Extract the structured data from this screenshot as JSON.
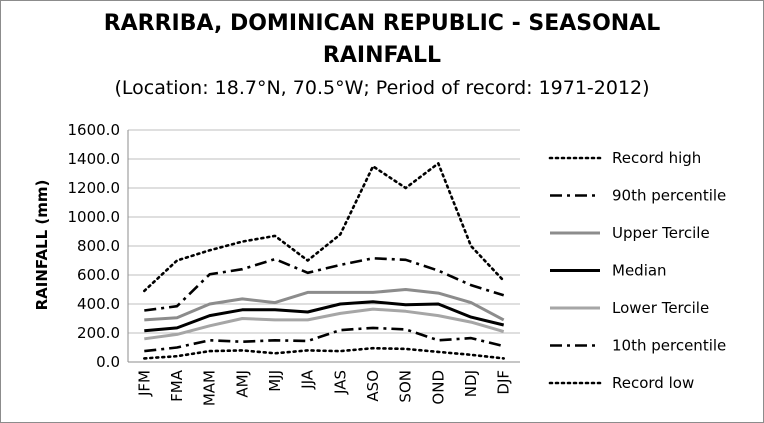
{
  "chart_data": {
    "type": "line",
    "title_line1": "RARRIBA, DOMINICAN REPUBLIC - SEASONAL",
    "title_line2": "RAINFALL",
    "subtitle": "(Location: 18.7°N, 70.5°W; Period of record: 1971-2012)",
    "ylabel": "RAINFALL (mm)",
    "xlabel": "",
    "ylim": [
      0,
      1600
    ],
    "ytick_values": [
      0,
      200,
      400,
      600,
      800,
      1000,
      1200,
      1400,
      1600
    ],
    "ytick_labels": [
      "0.0",
      "200.0",
      "400.0",
      "600.0",
      "800.0",
      "1000.0",
      "1200.0",
      "1400.0",
      "1600.0"
    ],
    "categories": [
      "JFM",
      "FMA",
      "MAM",
      "AMJ",
      "MJJ",
      "JJA",
      "JAS",
      "ASO",
      "SON",
      "OND",
      "NDJ",
      "DJF"
    ],
    "grid": "horizontal major gridlines",
    "legend_position": "right",
    "series": [
      {
        "name": "Record high",
        "style": "dotted",
        "color": "#000000",
        "values": [
          490,
          700,
          770,
          830,
          870,
          700,
          880,
          1350,
          1200,
          1370,
          800,
          560
        ]
      },
      {
        "name": "90th percentile",
        "style": "dash-dot",
        "color": "#000000",
        "values": [
          355,
          385,
          605,
          640,
          710,
          615,
          670,
          715,
          705,
          630,
          530,
          460
        ]
      },
      {
        "name": "Upper Tercile",
        "style": "solid",
        "color": "#8c8c8c",
        "values": [
          290,
          305,
          400,
          435,
          410,
          480,
          480,
          480,
          500,
          475,
          410,
          290
        ]
      },
      {
        "name": "Median",
        "style": "solid",
        "color": "#000000",
        "values": [
          215,
          235,
          320,
          360,
          360,
          345,
          400,
          415,
          395,
          400,
          310,
          255
        ]
      },
      {
        "name": "Lower Tercile",
        "style": "solid",
        "color": "#a6a6a6",
        "values": [
          160,
          190,
          250,
          300,
          290,
          290,
          335,
          365,
          350,
          320,
          275,
          210
        ]
      },
      {
        "name": "10th percentile",
        "style": "dash-dot",
        "color": "#000000",
        "values": [
          75,
          100,
          150,
          140,
          150,
          145,
          220,
          235,
          225,
          150,
          165,
          110
        ]
      },
      {
        "name": "Record low",
        "style": "dotted",
        "color": "#000000",
        "values": [
          25,
          40,
          75,
          80,
          60,
          80,
          75,
          95,
          90,
          70,
          50,
          25
        ]
      }
    ]
  }
}
